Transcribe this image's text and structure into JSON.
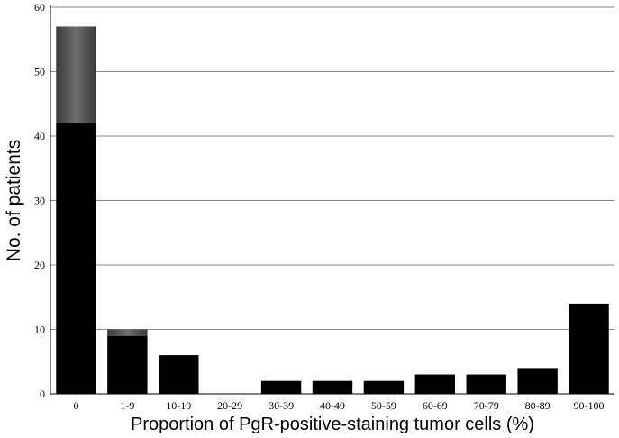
{
  "chart_data": {
    "type": "bar",
    "stacked": true,
    "title": "",
    "xlabel": "Proportion of PgR-positive-staining tumor cells (%)",
    "ylabel": "No. of patients",
    "categories": [
      "0",
      "1-9",
      "10-19",
      "20-29",
      "30-39",
      "40-49",
      "50-59",
      "60-69",
      "70-79",
      "80-89",
      "90-100"
    ],
    "series": [
      {
        "values": [
          42,
          9,
          6,
          0,
          2,
          2,
          2,
          3,
          3,
          4,
          14
        ],
        "color": "#000000"
      },
      {
        "values": [
          15,
          1,
          0,
          0,
          0,
          0,
          0,
          0,
          0,
          0,
          0
        ],
        "color": "#555555"
      }
    ],
    "ylim": [
      0,
      60
    ],
    "yticks": [
      0,
      10,
      20,
      30,
      40,
      50,
      60
    ],
    "grid": true,
    "legend": "none"
  }
}
